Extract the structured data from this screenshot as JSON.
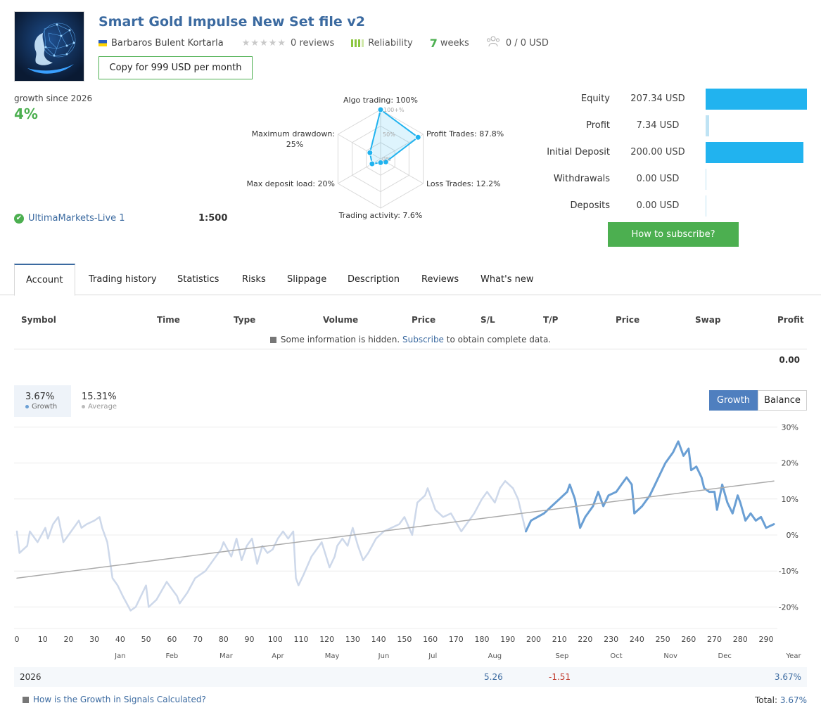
{
  "signal": {
    "title": "Smart Gold Impulse New Set file v2",
    "author": "Barbaros Bulent Kortarla",
    "reviews": "0 reviews",
    "reliability": "Reliability",
    "weeks_num": "7",
    "weeks_label": "weeks",
    "subscribers": "0 / 0 USD",
    "copy_button": "Copy for 999 USD per month",
    "growth_label": "growth since 2026",
    "growth_value": "4%",
    "broker": "UltimaMarkets-Live 1",
    "leverage": "1:500"
  },
  "radar": {
    "labels": {
      "algo": "Algo trading: 100%",
      "profit": "Profit Trades: 87.8%",
      "loss": "Loss Trades: 12.2%",
      "activity": "Trading activity: 7.6%",
      "deposit_load": "Max deposit load: 20%",
      "drawdown_1": "Maximum drawdown:",
      "drawdown_2": "25%"
    },
    "ring_labels": [
      "100+%",
      "50%",
      "0%"
    ],
    "values": {
      "algo": 100,
      "profit": 87.8,
      "loss": 12.2,
      "activity": 7.6,
      "deposit_load": 20,
      "drawdown": 25
    }
  },
  "stats": [
    {
      "label": "Equity",
      "value": "207.34 USD",
      "fraction": 1.0
    },
    {
      "label": "Profit",
      "value": "7.34 USD",
      "fraction": 0.035
    },
    {
      "label": "Initial Deposit",
      "value": "200.00 USD",
      "fraction": 0.965
    },
    {
      "label": "Withdrawals",
      "value": "0.00 USD",
      "fraction": 0
    },
    {
      "label": "Deposits",
      "value": "0.00 USD",
      "fraction": 0
    }
  ],
  "subscribe_button": "How to subscribe?",
  "tabs": [
    "Account",
    "Trading history",
    "Statistics",
    "Risks",
    "Slippage",
    "Description",
    "Reviews",
    "What's new"
  ],
  "table": {
    "headers": [
      "Symbol",
      "Time",
      "Type",
      "Volume",
      "Price",
      "S/L",
      "T/P",
      "Price",
      "Swap",
      "Profit"
    ],
    "hidden_note_pre": "Some information is hidden.",
    "hidden_note_link": "Subscribe",
    "hidden_note_post": "to obtain complete data.",
    "profit_total": "0.00"
  },
  "growth_tabs": {
    "growth_value": "3.67%",
    "growth_label": "Growth",
    "average_value": "15.31%",
    "average_label": "Average",
    "btn_growth": "Growth",
    "btn_balance": "Balance"
  },
  "colors": {
    "accent": "#3b6aa0",
    "green": "#4caf50",
    "bar": "#21b3ef",
    "series_active": "#6a9fd4",
    "series_faded": "#cdd8ea",
    "average": "#aaaaaa"
  },
  "chart_data": {
    "type": "line",
    "x_ticks": [
      0,
      10,
      20,
      30,
      40,
      50,
      60,
      70,
      80,
      90,
      100,
      110,
      120,
      130,
      140,
      150,
      160,
      170,
      180,
      190,
      200,
      210,
      220,
      230,
      240,
      250,
      260,
      270,
      280,
      290
    ],
    "y_ticks": [
      "30%",
      "20%",
      "10%",
      "0%",
      "-10%",
      "-20%"
    ],
    "y_tick_values": [
      30,
      20,
      10,
      0,
      -10,
      -20
    ],
    "xlim": [
      0,
      293
    ],
    "ylim": [
      -26,
      31
    ],
    "months": [
      {
        "label": "Jan",
        "x": 40
      },
      {
        "label": "Feb",
        "x": 60
      },
      {
        "label": "Mar",
        "x": 81
      },
      {
        "label": "Apr",
        "x": 101
      },
      {
        "label": "May",
        "x": 122
      },
      {
        "label": "Jun",
        "x": 142
      },
      {
        "label": "Jul",
        "x": 161
      },
      {
        "label": "Aug",
        "x": 185
      },
      {
        "label": "Sep",
        "x": 211
      },
      {
        "label": "Oct",
        "x": 232
      },
      {
        "label": "Nov",
        "x": 253
      },
      {
        "label": "Dec",
        "x": 274
      }
    ],
    "year_label": "Year",
    "series": [
      {
        "style": "faded",
        "points": [
          [
            0,
            1
          ],
          [
            1,
            -5
          ],
          [
            4,
            -3
          ],
          [
            5,
            1
          ],
          [
            8,
            -2
          ],
          [
            11,
            2
          ],
          [
            12,
            -1
          ],
          [
            14,
            3
          ],
          [
            16,
            5
          ],
          [
            18,
            -2
          ],
          [
            21,
            1
          ],
          [
            24,
            4
          ],
          [
            25,
            2
          ],
          [
            27,
            3
          ],
          [
            30,
            4
          ],
          [
            32,
            5
          ],
          [
            33,
            2
          ],
          [
            35,
            -2
          ],
          [
            37,
            -12
          ],
          [
            39,
            -14
          ],
          [
            41,
            -17
          ],
          [
            44,
            -21
          ],
          [
            46,
            -20
          ],
          [
            50,
            -14
          ],
          [
            51,
            -20
          ],
          [
            54,
            -18
          ],
          [
            58,
            -13
          ],
          [
            60,
            -15
          ],
          [
            62,
            -17
          ],
          [
            63,
            -19
          ],
          [
            66,
            -16
          ],
          [
            69,
            -12
          ],
          [
            73,
            -10
          ],
          [
            76,
            -7
          ],
          [
            79,
            -4
          ],
          [
            80,
            -2
          ],
          [
            83,
            -6
          ],
          [
            85,
            -1
          ],
          [
            87,
            -7
          ],
          [
            89,
            -3
          ],
          [
            91,
            -1
          ],
          [
            93,
            -8
          ],
          [
            95,
            -3
          ],
          [
            97,
            -5
          ],
          [
            99,
            -4
          ],
          [
            101,
            -1
          ],
          [
            103,
            1
          ],
          [
            105,
            -1
          ],
          [
            107,
            1
          ],
          [
            108,
            -12
          ],
          [
            109,
            -14
          ],
          [
            111,
            -11
          ],
          [
            114,
            -6
          ],
          [
            117,
            -3
          ],
          [
            118,
            -2
          ],
          [
            121,
            -9
          ],
          [
            123,
            -6
          ],
          [
            124,
            -3
          ],
          [
            126,
            -1
          ],
          [
            128,
            -3
          ],
          [
            130,
            2
          ],
          [
            132,
            -3
          ],
          [
            134,
            -7
          ],
          [
            136,
            -5
          ],
          [
            139,
            -1
          ],
          [
            142,
            1
          ],
          [
            145,
            2
          ],
          [
            148,
            3
          ],
          [
            150,
            5
          ],
          [
            153,
            0
          ],
          [
            155,
            9
          ],
          [
            158,
            11
          ],
          [
            159,
            13
          ],
          [
            162,
            7
          ],
          [
            165,
            5
          ],
          [
            168,
            6
          ],
          [
            172,
            1
          ],
          [
            174,
            3
          ],
          [
            177,
            6
          ],
          [
            180,
            10
          ],
          [
            182,
            12
          ],
          [
            185,
            9
          ],
          [
            187,
            13
          ],
          [
            189,
            15
          ],
          [
            192,
            13
          ],
          [
            194,
            10
          ],
          [
            197,
            1
          ]
        ]
      },
      {
        "style": "active",
        "points": [
          [
            197,
            1
          ],
          [
            199,
            4
          ],
          [
            204,
            6
          ],
          [
            207,
            8
          ],
          [
            210,
            10
          ],
          [
            213,
            12
          ],
          [
            214,
            14
          ],
          [
            216,
            10
          ],
          [
            218,
            2
          ],
          [
            220,
            5
          ],
          [
            223,
            8
          ],
          [
            225,
            12
          ],
          [
            227,
            8
          ],
          [
            229,
            11
          ],
          [
            232,
            12
          ],
          [
            234,
            14
          ],
          [
            236,
            16
          ],
          [
            238,
            14
          ],
          [
            239,
            6
          ],
          [
            242,
            8
          ],
          [
            245,
            11
          ],
          [
            247,
            14
          ],
          [
            249,
            17
          ],
          [
            251,
            20
          ],
          [
            254,
            23
          ],
          [
            256,
            26
          ],
          [
            258,
            22
          ],
          [
            260,
            24
          ],
          [
            261,
            18
          ],
          [
            263,
            19
          ],
          [
            265,
            16
          ],
          [
            266,
            13
          ],
          [
            268,
            12
          ],
          [
            270,
            12
          ],
          [
            271,
            7
          ],
          [
            273,
            14
          ],
          [
            275,
            9
          ],
          [
            277,
            6
          ],
          [
            279,
            11
          ],
          [
            280,
            9
          ],
          [
            282,
            4
          ],
          [
            284,
            6
          ],
          [
            286,
            4
          ],
          [
            288,
            5
          ],
          [
            290,
            2
          ],
          [
            293,
            3
          ]
        ]
      },
      {
        "style": "average",
        "points": [
          [
            0,
            -12
          ],
          [
            293,
            15
          ]
        ]
      }
    ]
  },
  "year_row": {
    "year": "2026",
    "aug": "5.26",
    "sep": "-1.51",
    "total": "3.67%"
  },
  "footer": {
    "link": "How is the Growth in Signals Calculated?",
    "total_label": "Total:",
    "total_value": "3.67%"
  }
}
